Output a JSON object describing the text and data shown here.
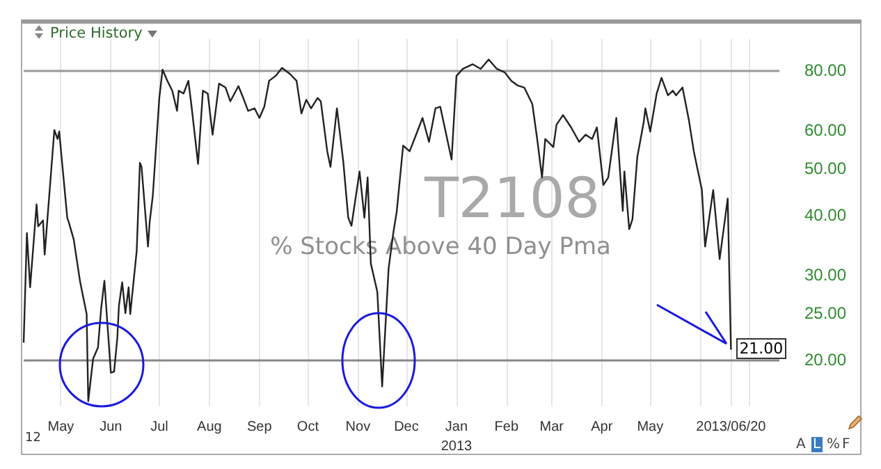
{
  "chart_data": {
    "type": "line",
    "title": "T2108",
    "subtitle": "% Stocks Above 40 Day Pma",
    "log": "y",
    "grid": "x",
    "color": "#222222",
    "marker": "none",
    "annotations": [
      "Price History",
      "12",
      "A",
      "L",
      "%",
      "F",
      {
        "text": "21.00",
        "x": "2013-06-20",
        "y": 21
      }
    ],
    "ylim": [
      16,
      93
    ],
    "yticks": [
      {
        "value": 20,
        "label": "20.00"
      },
      {
        "value": 25,
        "label": "25.00"
      },
      {
        "value": 30,
        "label": "30.00"
      },
      {
        "value": 40,
        "label": "40.00"
      },
      {
        "value": 50,
        "label": "50.00"
      },
      {
        "value": 60,
        "label": "60.00"
      },
      {
        "value": 80,
        "label": "80.00"
      }
    ],
    "xlim": [
      "2012-04-08",
      "2013-07-20"
    ],
    "xticks": [
      {
        "value": "2012-05-01",
        "label": "May"
      },
      {
        "value": "2012-06-01",
        "label": "Jun"
      },
      {
        "value": "2012-07-01",
        "label": "Jul"
      },
      {
        "value": "2012-08-01",
        "label": "Aug"
      },
      {
        "value": "2012-09-01",
        "label": "Sep"
      },
      {
        "value": "2012-10-01",
        "label": "Oct"
      },
      {
        "value": "2012-11-01",
        "label": "Nov"
      },
      {
        "value": "2012-12-01",
        "label": "Dec"
      },
      {
        "value": "2013-01-01",
        "label": "Jan\n2013"
      },
      {
        "value": "2013-02-01",
        "label": "Feb"
      },
      {
        "value": "2013-03-01",
        "label": "Mar"
      },
      {
        "value": "2013-04-01",
        "label": "Apr"
      },
      {
        "value": "2013-05-01",
        "label": "May"
      },
      {
        "value": "2013-06-01",
        "label": null
      },
      {
        "value": "2013-06-20",
        "label": "2013/06/20"
      },
      {
        "value": "2013-07-01",
        "label": null
      }
    ],
    "ref_lines": [
      {
        "axis": "y",
        "value": 80,
        "color": "#999999"
      },
      {
        "axis": "y",
        "value": 20,
        "color": "#888888"
      }
    ],
    "x": [
      "2012-04-08",
      "2012-04-10",
      "2012-04-12",
      "2012-04-16",
      "2012-04-17",
      "2012-04-20",
      "2012-04-21",
      "2012-04-27",
      "2012-04-29",
      "2012-04-30",
      "2012-05-05",
      "2012-05-06",
      "2012-05-09",
      "2012-05-13",
      "2012-05-17",
      "2012-05-18",
      "2012-05-21",
      "2012-05-24",
      "2012-05-26",
      "2012-05-28",
      "2012-05-30",
      "2012-06-01",
      "2012-06-03",
      "2012-06-05",
      "2012-06-06",
      "2012-06-08",
      "2012-06-10",
      "2012-06-12",
      "2012-06-13",
      "2012-06-17",
      "2012-06-19",
      "2012-06-20",
      "2012-06-24",
      "2012-06-25",
      "2012-06-27",
      "2012-07-01",
      "2012-07-03",
      "2012-07-06",
      "2012-07-09",
      "2012-07-12",
      "2012-07-13",
      "2012-07-16",
      "2012-07-19",
      "2012-07-21",
      "2012-07-25",
      "2012-07-28",
      "2012-07-31",
      "2012-08-03",
      "2012-08-07",
      "2012-08-11",
      "2012-08-14",
      "2012-08-19",
      "2012-08-22",
      "2012-08-25",
      "2012-08-29",
      "2012-09-01",
      "2012-09-04",
      "2012-09-07",
      "2012-09-11",
      "2012-09-15",
      "2012-09-20",
      "2012-09-24",
      "2012-09-27",
      "2012-09-30",
      "2012-10-03",
      "2012-10-07",
      "2012-10-09",
      "2012-10-13",
      "2012-10-15",
      "2012-10-19",
      "2012-10-23",
      "2012-10-26",
      "2012-10-28",
      "2012-11-02",
      "2012-11-05",
      "2012-11-07",
      "2012-11-09",
      "2012-11-13",
      "2012-11-16",
      "2012-11-20",
      "2012-11-23",
      "2012-11-25",
      "2012-11-29",
      "2012-12-03",
      "2012-12-06",
      "2012-12-11",
      "2012-12-15",
      "2012-12-19",
      "2012-12-22",
      "2012-12-29",
      "2013-01-01",
      "2013-01-05",
      "2013-01-11",
      "2013-01-16",
      "2013-01-21",
      "2013-01-26",
      "2013-01-31",
      "2013-02-04",
      "2013-02-08",
      "2013-02-12",
      "2013-02-17",
      "2013-02-20",
      "2013-02-23",
      "2013-02-25",
      "2013-03-02",
      "2013-03-04",
      "2013-03-08",
      "2013-03-13",
      "2013-03-18",
      "2013-03-22",
      "2013-03-26",
      "2013-03-29",
      "2013-04-02",
      "2013-04-05",
      "2013-04-10",
      "2013-04-14",
      "2013-04-15",
      "2013-04-18",
      "2013-04-20",
      "2013-04-23",
      "2013-04-27",
      "2013-04-28",
      "2013-05-01",
      "2013-05-05",
      "2013-05-08",
      "2013-05-12",
      "2013-05-15",
      "2013-05-17",
      "2013-05-21",
      "2013-05-25",
      "2013-05-28",
      "2013-06-02",
      "2013-06-04",
      "2013-06-09",
      "2013-06-13",
      "2013-06-18",
      "2013-06-20"
    ],
    "values": [
      21.7,
      36.7,
      28.3,
      42.1,
      37.9,
      39,
      33.1,
      60.1,
      57.6,
      59.7,
      39.5,
      38.6,
      35.6,
      29,
      24.9,
      16.4,
      20.1,
      21.2,
      25.6,
      29.2,
      23.4,
      18.8,
      18.9,
      22.2,
      25.9,
      29,
      25,
      28.3,
      24.9,
      33.7,
      51.4,
      50.4,
      34.4,
      38.6,
      44,
      70.1,
      80.3,
      76.1,
      72.6,
      65.9,
      72.6,
      71.6,
      76.1,
      67.2,
      51.1,
      72.6,
      71.6,
      58.8,
      75.1,
      73.7,
      69,
      74.2,
      70.1,
      65.9,
      66.7,
      63.7,
      67.2,
      76.1,
      77.9,
      81,
      78.6,
      76.1,
      65.1,
      69.5,
      66.7,
      70.1,
      69,
      54.3,
      50.4,
      66.7,
      51.4,
      39.5,
      38,
      49.3,
      39.5,
      47.9,
      31.7,
      27.7,
      17.6,
      31,
      36.9,
      40.6,
      55.8,
      54.3,
      57.6,
      63.7,
      56.8,
      66.7,
      67.2,
      52.2,
      77.9,
      80.6,
      82.4,
      80.6,
      84.3,
      80.6,
      79.2,
      76.1,
      74.4,
      73.7,
      68.1,
      57.6,
      47.9,
      57.6,
      55.4,
      61.7,
      64.6,
      60.9,
      56.8,
      58.8,
      57.6,
      60.9,
      46.2,
      47.9,
      63.7,
      40.8,
      49.3,
      37.4,
      39.2,
      52.8,
      62.5,
      66.7,
      59.7,
      71.6,
      77.2,
      71,
      72.6,
      71,
      73.7,
      62.9,
      54.3,
      45.1,
      34.4,
      45.1,
      32.4,
      43.3,
      21
    ]
  }
}
